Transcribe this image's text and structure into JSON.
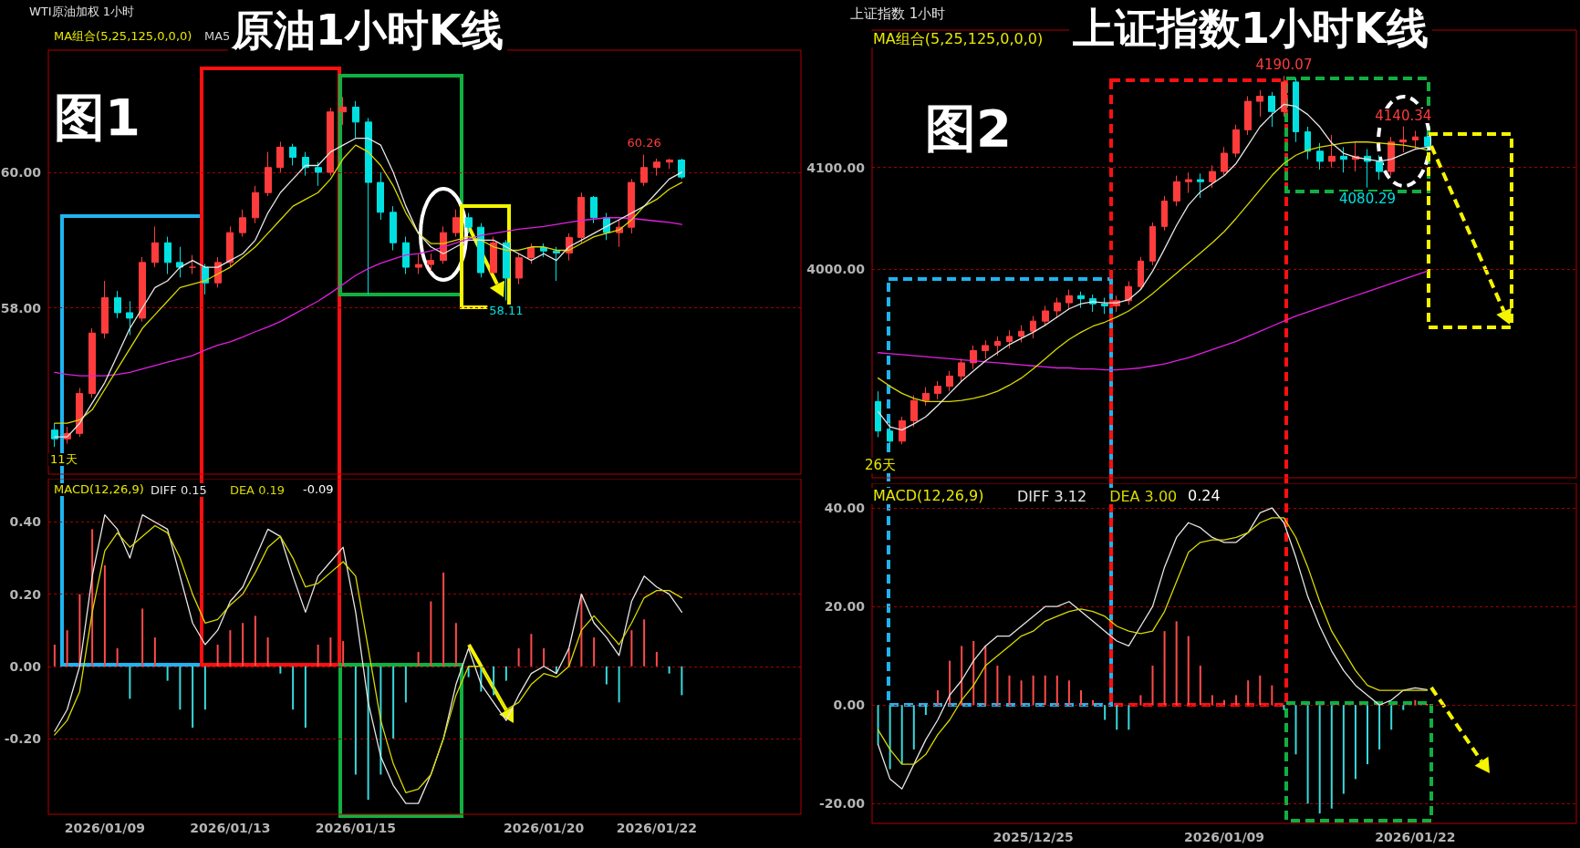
{
  "chart_data": [
    {
      "type": "candlestick",
      "title": "原油1小时K线",
      "subtitle": "WTI原油加权 1小时",
      "annotations": [
        "图1",
        "MA组合(5,25,125,0,0,0)",
        "MA5",
        "11天",
        {
          "text": "60.26",
          "y": 60.26
        },
        {
          "text": "58.11",
          "y": 58.11
        }
      ],
      "categories": [
        null,
        null,
        null,
        null,
        "2026/01/09",
        null,
        null,
        null,
        null,
        null,
        null,
        null,
        null,
        null,
        "2026/01/13",
        null,
        null,
        null,
        null,
        null,
        null,
        null,
        null,
        null,
        "2026/01/15",
        null,
        null,
        null,
        null,
        null,
        null,
        null,
        null,
        null,
        null,
        null,
        null,
        null,
        null,
        "2026/01/20",
        null,
        null,
        null,
        null,
        null,
        null,
        null,
        null,
        "2026/01/22",
        null,
        null,
        null,
        null,
        null,
        null,
        null,
        null,
        null,
        null,
        null
      ],
      "series": [
        {
          "type": "line",
          "color": "#e020e0",
          "values": [
            57.05,
            57.02,
            57.0,
            57.0,
            57.0,
            57.02,
            57.05,
            57.1,
            57.15,
            57.2,
            57.25,
            57.3,
            57.38,
            57.45,
            57.5,
            57.57,
            57.65,
            57.72,
            57.8,
            57.9,
            58.0,
            58.1,
            58.22,
            58.35,
            58.48,
            58.58,
            58.66,
            58.72,
            58.78,
            58.8,
            58.84,
            58.9,
            58.96,
            59.02,
            59.07,
            59.1,
            59.13,
            59.16,
            59.18,
            59.2,
            59.23,
            59.26,
            59.29,
            59.31,
            59.33,
            59.33,
            59.32,
            59.3,
            59.28,
            59.26,
            59.23,
            null,
            null,
            null,
            null,
            null,
            null,
            null,
            null,
            null
          ]
        },
        {
          "type": "line",
          "color": "#d8d800",
          "values": [
            56.3,
            56.3,
            56.35,
            56.5,
            56.8,
            57.1,
            57.4,
            57.7,
            57.9,
            58.1,
            58.3,
            58.35,
            58.4,
            58.5,
            58.6,
            58.75,
            58.9,
            59.1,
            59.3,
            59.5,
            59.6,
            59.7,
            59.9,
            60.2,
            60.4,
            60.3,
            60.1,
            59.8,
            59.4,
            59.1,
            58.95,
            58.95,
            59.0,
            59.05,
            59.0,
            58.9,
            58.85,
            58.85,
            58.9,
            58.9,
            58.85,
            58.85,
            58.95,
            59.05,
            59.1,
            59.15,
            59.3,
            59.5,
            59.6,
            59.75,
            59.85,
            null,
            null,
            null,
            null,
            null,
            null,
            null,
            null,
            null
          ]
        },
        {
          "type": "line",
          "color": "#e6e6e6",
          "values": [
            56.1,
            56.1,
            56.3,
            56.6,
            56.9,
            57.3,
            57.7,
            58.0,
            58.3,
            58.4,
            58.6,
            58.7,
            58.6,
            58.6,
            58.7,
            58.8,
            59.0,
            59.4,
            59.7,
            59.9,
            60.1,
            60.1,
            60.3,
            60.4,
            60.5,
            60.5,
            60.4,
            60.0,
            59.5,
            59.1,
            58.9,
            58.8,
            58.9,
            59.0,
            59.0,
            59.0,
            58.9,
            58.8,
            58.7,
            58.8,
            58.7,
            58.9,
            59.0,
            59.1,
            59.2,
            59.3,
            59.4,
            59.5,
            59.7,
            59.9,
            60.0,
            null,
            null,
            null,
            null,
            null,
            null,
            null,
            null,
            null
          ]
        },
        {
          "ohlc": [
            [
              56.2,
              56.3,
              55.95,
              56.07
            ],
            [
              56.07,
              56.25,
              56.0,
              56.15
            ],
            [
              56.15,
              56.82,
              56.1,
              56.74
            ],
            [
              56.74,
              57.7,
              56.68,
              57.63
            ],
            [
              57.63,
              58.4,
              57.55,
              58.15
            ],
            [
              58.15,
              58.25,
              57.85,
              57.93
            ],
            [
              57.93,
              58.1,
              57.6,
              57.85
            ],
            [
              57.85,
              58.75,
              57.8,
              58.67
            ],
            [
              58.67,
              59.2,
              58.6,
              58.96
            ],
            [
              58.96,
              59.05,
              58.5,
              58.67
            ],
            [
              58.67,
              58.9,
              58.45,
              58.6
            ],
            [
              58.6,
              58.78,
              58.5,
              58.6
            ],
            [
              58.6,
              58.65,
              58.2,
              58.37
            ],
            [
              58.37,
              58.75,
              58.3,
              58.67
            ],
            [
              58.67,
              59.2,
              58.6,
              59.11
            ],
            [
              59.11,
              59.45,
              59.05,
              59.33
            ],
            [
              59.33,
              59.8,
              59.25,
              59.7
            ],
            [
              59.7,
              60.3,
              59.65,
              60.07
            ],
            [
              60.07,
              60.45,
              60.0,
              60.37
            ],
            [
              60.37,
              60.42,
              60.1,
              60.22
            ],
            [
              60.22,
              60.3,
              59.95,
              60.07
            ],
            [
              60.07,
              60.15,
              59.8,
              60.0
            ],
            [
              60.0,
              60.95,
              59.95,
              60.89
            ],
            [
              60.89,
              61.11,
              60.7,
              60.96
            ],
            [
              60.96,
              61.05,
              60.5,
              60.74
            ],
            [
              60.74,
              60.8,
              58.2,
              59.85
            ],
            [
              59.85,
              60.0,
              59.3,
              59.41
            ],
            [
              59.41,
              59.5,
              58.85,
              58.96
            ],
            [
              58.96,
              59.05,
              58.5,
              58.6
            ],
            [
              58.6,
              58.8,
              58.5,
              58.64
            ],
            [
              58.64,
              58.8,
              58.55,
              58.7
            ],
            [
              58.7,
              59.2,
              58.65,
              59.11
            ],
            [
              59.11,
              59.45,
              59.05,
              59.33
            ],
            [
              59.33,
              59.4,
              59.1,
              59.19
            ],
            [
              59.19,
              59.25,
              58.45,
              58.52
            ],
            [
              58.52,
              59.05,
              58.52,
              58.96
            ],
            [
              58.96,
              59.0,
              58.11,
              58.44
            ],
            [
              58.44,
              58.8,
              58.35,
              58.74
            ],
            [
              58.74,
              58.95,
              58.65,
              58.89
            ],
            [
              58.89,
              58.95,
              58.75,
              58.84
            ],
            [
              58.84,
              58.9,
              58.4,
              58.81
            ],
            [
              58.81,
              59.1,
              58.7,
              59.04
            ],
            [
              59.04,
              59.7,
              58.95,
              59.63
            ],
            [
              59.63,
              59.65,
              59.25,
              59.33
            ],
            [
              59.33,
              59.4,
              59.0,
              59.11
            ],
            [
              59.11,
              59.3,
              58.9,
              59.19
            ],
            [
              59.19,
              59.9,
              59.1,
              59.85
            ],
            [
              59.85,
              60.26,
              59.8,
              60.07
            ],
            [
              60.07,
              60.2,
              59.95,
              60.15
            ],
            [
              60.15,
              60.2,
              60.05,
              60.18
            ],
            [
              60.18,
              60.2,
              59.9,
              59.93
            ],
            null,
            null,
            null,
            null,
            null,
            null,
            null,
            null,
            null
          ],
          "colors": [
            "#00e0e0",
            "#ff3c3c",
            "#ff3c3c",
            "#ff3c3c",
            "#ff3c3c",
            "#00e0e0",
            "#00e0e0",
            "#ff3c3c",
            "#ff3c3c",
            "#00e0e0",
            "#00e0e0",
            "#ff3c3c",
            "#00e0e0",
            "#ff3c3c",
            "#ff3c3c",
            "#ff3c3c",
            "#ff3c3c",
            "#ff3c3c",
            "#ff3c3c",
            "#00e0e0",
            "#00e0e0",
            "#00e0e0",
            "#ff3c3c",
            "#ff3c3c",
            "#00e0e0",
            "#00e0e0",
            "#00e0e0",
            "#00e0e0",
            "#00e0e0",
            "#ff3c3c",
            "#ff3c3c",
            "#ff3c3c",
            "#ff3c3c",
            "#00e0e0",
            "#00e0e0",
            "#ff3c3c",
            "#00e0e0",
            "#ff3c3c",
            "#ff3c3c",
            "#00e0e0",
            "#00e0e0",
            "#ff3c3c",
            "#ff3c3c",
            "#00e0e0",
            "#00e0e0",
            "#ff3c3c",
            "#ff3c3c",
            "#ff3c3c",
            "#ff3c3c",
            "#ff3c3c",
            "#00e0e0",
            null,
            null,
            null,
            null,
            null,
            null,
            null,
            null,
            null
          ]
        }
      ],
      "ylim": [
        55.55,
        61.8
      ],
      "yticks": [
        {
          "value": 58,
          "label": "58.00"
        },
        {
          "value": 60,
          "label": "60.00"
        }
      ],
      "grid": "y",
      "tick_labels": "y"
    },
    {
      "type": "line",
      "annotations": [
        "MACD(12,26,9)",
        "-0.09"
      ],
      "categories": [
        null,
        null,
        null,
        null,
        "2026/01/09",
        null,
        null,
        null,
        null,
        null,
        null,
        null,
        null,
        null,
        "2026/01/13",
        null,
        null,
        null,
        null,
        null,
        null,
        null,
        null,
        null,
        "2026/01/15",
        null,
        null,
        null,
        null,
        null,
        null,
        null,
        null,
        null,
        null,
        null,
        null,
        null,
        null,
        "2026/01/20",
        null,
        null,
        null,
        null,
        null,
        null,
        null,
        null,
        "2026/01/22",
        null,
        null,
        null,
        null,
        null,
        null,
        null,
        null,
        null,
        null,
        null
      ],
      "series": [
        {
          "type": "bar",
          "color": "#ff4a4a",
          "values": [
            0.06,
            0.1,
            0.2,
            0.38,
            0.28,
            0.05,
            null,
            0.16,
            0.08,
            null,
            null,
            null,
            null,
            0.06,
            0.1,
            0.12,
            0.14,
            0.08,
            null,
            null,
            null,
            0.06,
            0.08,
            0.07,
            null,
            null,
            null,
            null,
            null,
            0.04,
            0.18,
            0.26,
            0.12,
            null,
            null,
            null,
            null,
            0.05,
            0.09,
            0.05,
            null,
            0.05,
            0.2,
            0.08,
            null,
            null,
            0.1,
            0.13,
            0.04,
            null,
            null,
            null,
            null,
            null,
            null,
            null,
            null,
            null,
            null,
            null
          ]
        },
        {
          "type": "bar",
          "color": "#38d9dc",
          "values": [
            null,
            null,
            null,
            null,
            null,
            null,
            -0.09,
            null,
            null,
            -0.04,
            -0.12,
            -0.17,
            -0.12,
            null,
            null,
            null,
            null,
            null,
            -0.02,
            -0.12,
            -0.17,
            null,
            null,
            null,
            -0.3,
            -0.37,
            -0.3,
            -0.2,
            -0.1,
            null,
            null,
            null,
            null,
            -0.03,
            -0.07,
            -0.08,
            -0.04,
            null,
            null,
            null,
            -0.02,
            null,
            null,
            null,
            -0.05,
            -0.1,
            null,
            null,
            null,
            -0.02,
            -0.08,
            null,
            null,
            null,
            null,
            null,
            null,
            null,
            null,
            null
          ]
        },
        {
          "name": "DIFF 0.15",
          "color": "#e6e6e6",
          "values": [
            -0.18,
            -0.12,
            0.0,
            0.25,
            0.42,
            0.38,
            0.3,
            0.42,
            0.4,
            0.38,
            0.25,
            0.12,
            0.06,
            0.1,
            0.18,
            0.22,
            0.3,
            0.38,
            0.36,
            0.25,
            0.15,
            0.25,
            0.29,
            0.33,
            0.15,
            -0.1,
            -0.25,
            -0.33,
            -0.38,
            -0.38,
            -0.3,
            -0.2,
            -0.05,
            0.05,
            -0.05,
            -0.1,
            -0.15,
            -0.08,
            -0.02,
            0.0,
            -0.02,
            0.05,
            0.2,
            0.12,
            0.08,
            0.03,
            0.18,
            0.25,
            0.22,
            0.2,
            0.15,
            null,
            null,
            null,
            null,
            null,
            null,
            null,
            null,
            null
          ]
        },
        {
          "name": "DEA 0.19",
          "color": "#d8d800",
          "values": [
            -0.19,
            -0.15,
            -0.07,
            0.15,
            0.32,
            0.37,
            0.33,
            0.36,
            0.39,
            0.37,
            0.3,
            0.2,
            0.12,
            0.13,
            0.17,
            0.2,
            0.26,
            0.33,
            0.36,
            0.3,
            0.22,
            0.23,
            0.26,
            0.29,
            0.25,
            0.05,
            -0.15,
            -0.27,
            -0.35,
            -0.34,
            -0.3,
            -0.2,
            -0.08,
            0.0,
            0.0,
            -0.06,
            -0.12,
            -0.1,
            -0.05,
            -0.02,
            -0.03,
            0.0,
            0.1,
            0.14,
            0.1,
            0.06,
            0.12,
            0.19,
            0.21,
            0.21,
            0.19,
            null,
            null,
            null,
            null,
            null,
            null,
            null,
            null,
            null
          ]
        }
      ],
      "ylim": [
        -0.41,
        0.52
      ],
      "yticks": [
        {
          "value": -0.2,
          "label": "-0.20"
        },
        {
          "value": 0,
          "label": "0.00"
        },
        {
          "value": 0.2,
          "label": "0.20"
        },
        {
          "value": 0.4,
          "label": "0.40"
        }
      ],
      "grid": "y",
      "legend": "top left"
    },
    {
      "type": "candlestick",
      "title": "上证指数1小时K线",
      "subtitle": "上证指数 1小时",
      "annotations": [
        "图2",
        "MA组合(5,25,125,0,0,0)",
        "26天",
        {
          "text": "4190.07",
          "y": 4190.07
        },
        {
          "text": "4140.34",
          "y": 4140.34
        },
        {
          "text": "4080.29",
          "y": 4080.29
        }
      ],
      "categories": [
        null,
        null,
        null,
        null,
        null,
        null,
        null,
        null,
        null,
        null,
        null,
        null,
        null,
        "2025/12/25",
        null,
        null,
        null,
        null,
        null,
        null,
        null,
        null,
        null,
        null,
        null,
        null,
        null,
        null,
        null,
        "2026/01/09",
        null,
        null,
        null,
        null,
        null,
        null,
        null,
        null,
        null,
        null,
        null,
        null,
        null,
        null,
        null,
        "2026/01/22",
        null,
        null,
        null,
        null,
        null,
        null,
        null,
        null,
        null,
        null,
        null,
        null,
        null
      ],
      "series": [
        {
          "type": "line",
          "color": "#e020e0",
          "values": [
            3918,
            3917,
            3916,
            3915,
            3914,
            3913,
            3912,
            3911,
            3910,
            3909,
            3908,
            3907,
            3906,
            3905,
            3904,
            3903,
            3903,
            3902,
            3902,
            3901,
            3901,
            3902,
            3903,
            3905,
            3907,
            3910,
            3913,
            3917,
            3921,
            3925,
            3929,
            3934,
            3939,
            3944,
            3949,
            3954,
            3958,
            3962,
            3966,
            3970,
            3974,
            3978,
            3982,
            3986,
            3990,
            3994,
            3998,
            null,
            null,
            null,
            null,
            null,
            null,
            null,
            null,
            null,
            null,
            null,
            null
          ]
        },
        {
          "type": "line",
          "color": "#d8d800",
          "values": [
            3893,
            3885,
            3878,
            3873,
            3870,
            3870,
            3870,
            3871,
            3873,
            3876,
            3880,
            3886,
            3893,
            3902,
            3912,
            3922,
            3931,
            3938,
            3944,
            3948,
            3953,
            3959,
            3967,
            3976,
            3986,
            3996,
            4006,
            4016,
            4026,
            4037,
            4050,
            4064,
            4078,
            4092,
            4104,
            4112,
            4117,
            4120,
            4122,
            4124,
            4125,
            4125,
            4124,
            4123,
            4122,
            4120,
            4117,
            null,
            null,
            null,
            null,
            null,
            null,
            null,
            null,
            null,
            null,
            null,
            null
          ]
        },
        {
          "type": "line",
          "color": "#e6e6e6",
          "values": [
            3860,
            3845,
            3842,
            3848,
            3855,
            3866,
            3878,
            3890,
            3900,
            3910,
            3918,
            3926,
            3932,
            3938,
            3945,
            3953,
            3961,
            3966,
            3968,
            3967,
            3967,
            3970,
            3980,
            3998,
            4020,
            4043,
            4063,
            4076,
            4084,
            4092,
            4104,
            4122,
            4140,
            4152,
            4162,
            4160,
            4152,
            4140,
            4124,
            4114,
            4110,
            4108,
            4106,
            4108,
            4113,
            4118,
            4120,
            null,
            null,
            null,
            null,
            null,
            null,
            null,
            null,
            null,
            null,
            null,
            null
          ]
        },
        {
          "ohlc": [
            [
              3870,
              3880,
              3835,
              3841
            ],
            [
              3841,
              3852,
              3822,
              3831
            ],
            [
              3831,
              3855,
              3828,
              3851
            ],
            [
              3851,
              3876,
              3845,
              3871
            ],
            [
              3871,
              3884,
              3866,
              3878
            ],
            [
              3878,
              3890,
              3872,
              3885
            ],
            [
              3885,
              3900,
              3880,
              3895
            ],
            [
              3895,
              3912,
              3890,
              3908
            ],
            [
              3908,
              3925,
              3902,
              3920
            ],
            [
              3920,
              3930,
              3912,
              3925
            ],
            [
              3925,
              3934,
              3915,
              3929
            ],
            [
              3929,
              3940,
              3922,
              3934
            ],
            [
              3934,
              3945,
              3928,
              3939
            ],
            [
              3939,
              3954,
              3932,
              3949
            ],
            [
              3949,
              3964,
              3944,
              3959
            ],
            [
              3959,
              3972,
              3952,
              3967
            ],
            [
              3967,
              3980,
              3960,
              3974
            ],
            [
              3974,
              3978,
              3962,
              3971
            ],
            [
              3971,
              3975,
              3958,
              3966
            ],
            [
              3966,
              3972,
              3956,
              3964
            ],
            [
              3964,
              3974,
              3958,
              3969
            ],
            [
              3969,
              3988,
              3965,
              3983
            ],
            [
              3983,
              4012,
              3980,
              4008
            ],
            [
              4008,
              4046,
              4004,
              4042
            ],
            [
              4042,
              4072,
              4038,
              4067
            ],
            [
              4067,
              4092,
              4062,
              4086
            ],
            [
              4086,
              4095,
              4075,
              4088
            ],
            [
              4088,
              4094,
              4070,
              4086
            ],
            [
              4086,
              4102,
              4080,
              4096
            ],
            [
              4096,
              4120,
              4092,
              4114
            ],
            [
              4114,
              4142,
              4110,
              4137
            ],
            [
              4137,
              4170,
              4132,
              4165
            ],
            [
              4165,
              4176,
              4150,
              4170
            ],
            [
              4170,
              4174,
              4140,
              4155
            ],
            [
              4155,
              4190.07,
              4150,
              4184
            ],
            [
              4184,
              4188,
              4125,
              4135
            ],
            [
              4135,
              4140,
              4108,
              4116
            ],
            [
              4116,
              4124,
              4098,
              4106
            ],
            [
              4106,
              4132,
              4100,
              4111
            ],
            [
              4111,
              4120,
              4095,
              4108
            ],
            [
              4108,
              4125,
              4096,
              4111
            ],
            [
              4111,
              4118,
              4080.29,
              4106
            ],
            [
              4106,
              4112,
              4088,
              4096
            ],
            [
              4096,
              4130,
              4092,
              4125
            ],
            [
              4125,
              4140.34,
              4115,
              4127
            ],
            [
              4127,
              4136,
              4118,
              4130
            ],
            [
              4130,
              4134,
              4116,
              4121
            ],
            null,
            null,
            null,
            null,
            null,
            null,
            null,
            null,
            null,
            null,
            null,
            null
          ],
          "colors": [
            "#00e0e0",
            "#00e0e0",
            "#ff3c3c",
            "#ff3c3c",
            "#ff3c3c",
            "#ff3c3c",
            "#ff3c3c",
            "#ff3c3c",
            "#ff3c3c",
            "#ff3c3c",
            "#ff3c3c",
            "#ff3c3c",
            "#ff3c3c",
            "#ff3c3c",
            "#ff3c3c",
            "#ff3c3c",
            "#ff3c3c",
            "#00e0e0",
            "#00e0e0",
            "#00e0e0",
            "#ff3c3c",
            "#ff3c3c",
            "#ff3c3c",
            "#ff3c3c",
            "#ff3c3c",
            "#ff3c3c",
            "#ff3c3c",
            "#00e0e0",
            "#ff3c3c",
            "#ff3c3c",
            "#ff3c3c",
            "#ff3c3c",
            "#ff3c3c",
            "#00e0e0",
            "#ff3c3c",
            "#00e0e0",
            "#00e0e0",
            "#00e0e0",
            "#ff3c3c",
            "#00e0e0",
            "#ff3c3c",
            "#00e0e0",
            "#00e0e0",
            "#ff3c3c",
            "#ff3c3c",
            "#ff3c3c",
            "#00e0e0",
            null,
            null,
            null,
            null,
            null,
            null,
            null,
            null,
            null,
            null,
            null,
            null
          ]
        }
      ],
      "ylim": [
        3795,
        4235
      ],
      "yticks": [
        {
          "value": 4000,
          "label": "4000.00"
        },
        {
          "value": 4100,
          "label": "4100.00"
        }
      ],
      "grid": "y",
      "tick_labels": "y"
    },
    {
      "type": "line",
      "annotations": [
        "MACD(12,26,9)",
        "0.24"
      ],
      "categories": [
        null,
        null,
        null,
        null,
        null,
        null,
        null,
        null,
        null,
        null,
        null,
        null,
        null,
        "2025/12/25",
        null,
        null,
        null,
        null,
        null,
        null,
        null,
        null,
        null,
        null,
        null,
        null,
        null,
        null,
        null,
        "2026/01/09",
        null,
        null,
        null,
        null,
        null,
        null,
        null,
        null,
        null,
        null,
        null,
        null,
        null,
        null,
        null,
        "2026/01/22",
        null,
        null,
        null,
        null,
        null,
        null,
        null,
        null,
        null,
        null,
        null,
        null,
        null
      ],
      "series": [
        {
          "type": "bar",
          "color": "#ff4a4a",
          "values": [
            null,
            null,
            null,
            null,
            null,
            3,
            9,
            12,
            13,
            12,
            8,
            6,
            5,
            6,
            6,
            6,
            5,
            3,
            1,
            null,
            null,
            null,
            2,
            8,
            15,
            17,
            14,
            8,
            2,
            1,
            2,
            5,
            6,
            4,
            null,
            null,
            null,
            null,
            null,
            null,
            null,
            null,
            null,
            null,
            null,
            1,
            0.24,
            null,
            null,
            null,
            null,
            null,
            null,
            null,
            null,
            null,
            null,
            null,
            null
          ]
        },
        {
          "type": "bar",
          "color": "#38d9dc",
          "values": [
            -8,
            -13,
            -12,
            -9,
            -2,
            null,
            null,
            null,
            null,
            null,
            null,
            null,
            null,
            null,
            null,
            null,
            null,
            null,
            null,
            -3,
            -5,
            -5,
            null,
            null,
            null,
            null,
            null,
            null,
            null,
            null,
            null,
            null,
            null,
            null,
            -1,
            -10,
            -20,
            -22,
            -21,
            -18,
            -15,
            -12,
            -9,
            -5,
            -1,
            null,
            null,
            null,
            null,
            null,
            null,
            null,
            null,
            null,
            null,
            null,
            null,
            null,
            null
          ]
        },
        {
          "name": "DIFF 3.12",
          "color": "#e6e6e6",
          "values": [
            -8,
            -15,
            -17,
            -12,
            -7,
            -3,
            2,
            5,
            9,
            12,
            14,
            14,
            16,
            18,
            20,
            20,
            21,
            19,
            17,
            15,
            13,
            12,
            16,
            20,
            28,
            34,
            37,
            36,
            34,
            33,
            33,
            35,
            39,
            40,
            37,
            30,
            22,
            16,
            11,
            7,
            4,
            2,
            0,
            1,
            3,
            3.5,
            3.12,
            null,
            null,
            null,
            null,
            null,
            null,
            null,
            null,
            null,
            null,
            null,
            null
          ]
        },
        {
          "name": "DEA 3.00",
          "color": "#d8d800",
          "values": [
            -5,
            -9,
            -12,
            -12,
            -10,
            -6,
            -3,
            1,
            4,
            8,
            10,
            12,
            14,
            15,
            17,
            18,
            19,
            19.5,
            19,
            18,
            16,
            15,
            14.5,
            15,
            19,
            25,
            31,
            33,
            33.5,
            33.5,
            34,
            35,
            37,
            38,
            38,
            34,
            28,
            21,
            15,
            11,
            7,
            4,
            3,
            3,
            3,
            3,
            3.0,
            null,
            null,
            null,
            null,
            null,
            null,
            null,
            null,
            null,
            null,
            null,
            null
          ]
        }
      ],
      "ylim": [
        -24,
        45
      ],
      "yticks": [
        {
          "value": -20,
          "label": "-20.00"
        },
        {
          "value": 0,
          "label": "0.00"
        },
        {
          "value": 20,
          "label": "20.00"
        },
        {
          "value": 40,
          "label": "40.00"
        }
      ],
      "grid": "y",
      "legend": "top left"
    }
  ]
}
